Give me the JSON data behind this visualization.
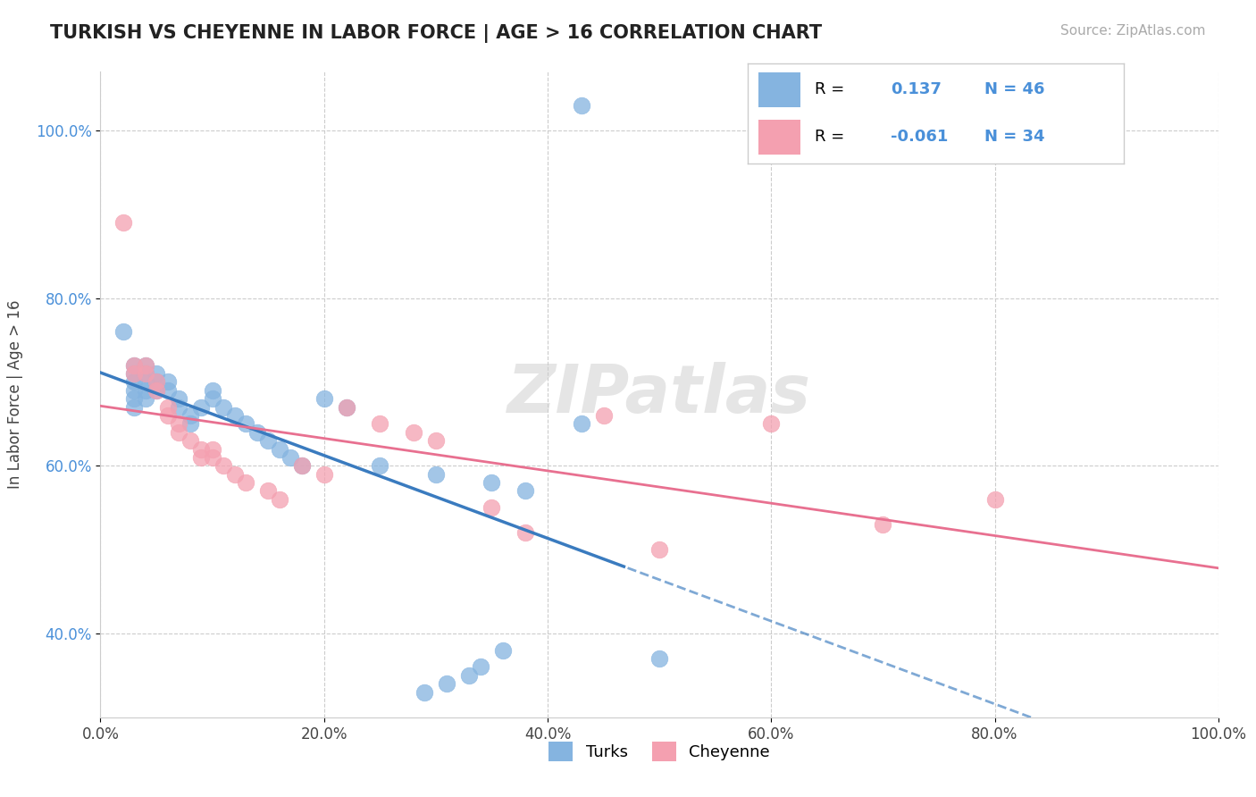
{
  "title": "TURKISH VS CHEYENNE IN LABOR FORCE | AGE > 16 CORRELATION CHART",
  "source": "Source: ZipAtlas.com",
  "xlabel": "",
  "ylabel": "In Labor Force | Age > 16",
  "xlim": [
    0.0,
    1.0
  ],
  "ylim": [
    0.3,
    1.07
  ],
  "xticks": [
    0.0,
    0.2,
    0.4,
    0.6,
    0.8,
    1.0
  ],
  "yticks": [
    0.4,
    0.6,
    0.8,
    1.0
  ],
  "xtick_labels": [
    "0.0%",
    "20.0%",
    "40.0%",
    "60.0%",
    "80.0%",
    "100.0%"
  ],
  "ytick_labels": [
    "40.0%",
    "60.0%",
    "80.0%",
    "100.0%"
  ],
  "turks_color": "#85b4e0",
  "cheyenne_color": "#f4a0b0",
  "turks_line_color": "#3a7bbf",
  "cheyenne_line_color": "#e87090",
  "turks_R": 0.137,
  "turks_N": 46,
  "cheyenne_R": -0.061,
  "cheyenne_N": 34,
  "watermark": "ZIPatlas",
  "background_color": "#ffffff",
  "grid_color": "#cccccc",
  "turks_x": [
    0.43,
    0.02,
    0.03,
    0.03,
    0.03,
    0.03,
    0.03,
    0.03,
    0.04,
    0.04,
    0.04,
    0.04,
    0.04,
    0.05,
    0.05,
    0.05,
    0.06,
    0.06,
    0.07,
    0.07,
    0.08,
    0.08,
    0.09,
    0.1,
    0.1,
    0.11,
    0.12,
    0.13,
    0.14,
    0.15,
    0.16,
    0.17,
    0.18,
    0.2,
    0.22,
    0.25,
    0.3,
    0.35,
    0.38,
    0.36,
    0.5,
    0.34,
    0.33,
    0.31,
    0.29,
    0.43
  ],
  "turks_y": [
    1.03,
    0.76,
    0.72,
    0.71,
    0.7,
    0.69,
    0.68,
    0.67,
    0.72,
    0.71,
    0.7,
    0.69,
    0.68,
    0.71,
    0.7,
    0.69,
    0.7,
    0.69,
    0.68,
    0.67,
    0.66,
    0.65,
    0.67,
    0.69,
    0.68,
    0.67,
    0.66,
    0.65,
    0.64,
    0.63,
    0.62,
    0.61,
    0.6,
    0.68,
    0.67,
    0.6,
    0.59,
    0.58,
    0.57,
    0.38,
    0.37,
    0.36,
    0.35,
    0.34,
    0.33,
    0.65
  ],
  "cheyenne_x": [
    0.02,
    0.03,
    0.03,
    0.04,
    0.04,
    0.05,
    0.05,
    0.06,
    0.06,
    0.07,
    0.07,
    0.08,
    0.09,
    0.09,
    0.1,
    0.1,
    0.11,
    0.12,
    0.13,
    0.15,
    0.16,
    0.18,
    0.2,
    0.22,
    0.25,
    0.28,
    0.3,
    0.35,
    0.38,
    0.45,
    0.5,
    0.6,
    0.7,
    0.8
  ],
  "cheyenne_y": [
    0.89,
    0.72,
    0.71,
    0.72,
    0.71,
    0.7,
    0.69,
    0.67,
    0.66,
    0.65,
    0.64,
    0.63,
    0.62,
    0.61,
    0.62,
    0.61,
    0.6,
    0.59,
    0.58,
    0.57,
    0.56,
    0.6,
    0.59,
    0.67,
    0.65,
    0.64,
    0.63,
    0.55,
    0.52,
    0.66,
    0.5,
    0.65,
    0.53,
    0.56
  ]
}
